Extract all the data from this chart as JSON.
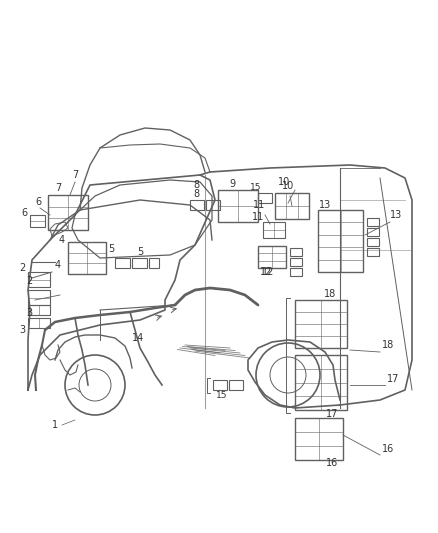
{
  "bg_color": "#ffffff",
  "line_color": "#606060",
  "fig_width": 4.38,
  "fig_height": 5.33,
  "dpi": 100
}
